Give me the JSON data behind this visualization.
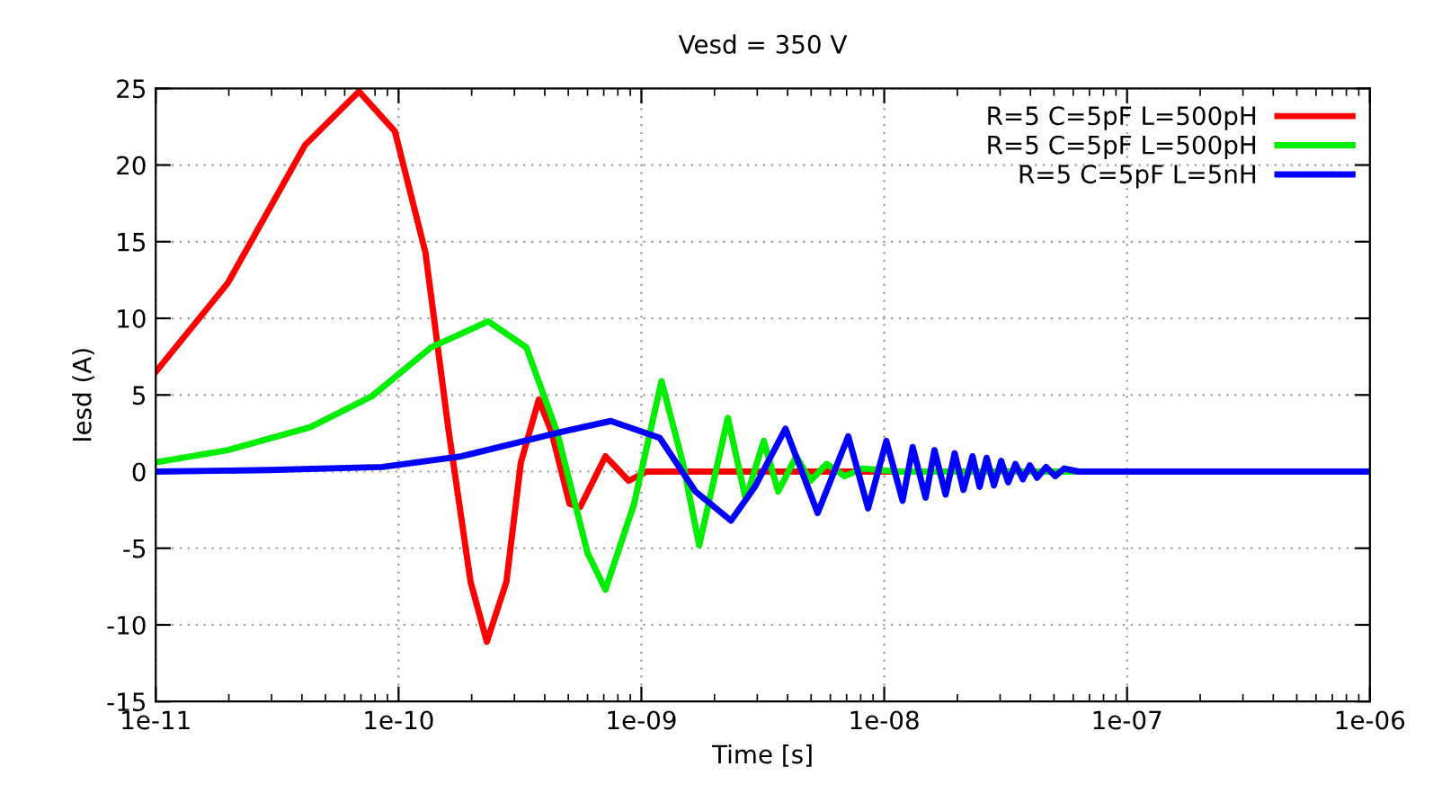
{
  "chart_data": {
    "type": "line",
    "title": "Vesd = 350 V",
    "xlabel": "Time [s]",
    "ylabel": "Iesd (A)",
    "log": "x",
    "xlim": [
      1e-11,
      1e-06
    ],
    "ylim": [
      -15,
      25
    ],
    "xticks": [
      {
        "value": 1e-11,
        "label": "1e-11"
      },
      {
        "value": 1e-10,
        "label": "1e-10"
      },
      {
        "value": 1e-09,
        "label": "1e-09"
      },
      {
        "value": 1e-08,
        "label": "1e-08"
      },
      {
        "value": 1e-07,
        "label": "1e-07"
      },
      {
        "value": 1e-06,
        "label": "1e-06"
      }
    ],
    "yticks": [
      -15,
      -10,
      -5,
      0,
      5,
      10,
      15,
      20,
      25
    ],
    "grid": true,
    "legend": "top right",
    "marker": "none",
    "line_style": "solid",
    "series": [
      {
        "name": "R=5 C=5pF L=500pH",
        "color": "#ff0000",
        "x": [
          1e-11,
          1.98e-11,
          4.12e-11,
          6.87e-11,
          9.66e-11,
          1.29e-10,
          1.61e-10,
          1.98e-10,
          2.31e-10,
          2.78e-10,
          3.19e-10,
          3.78e-10,
          4.26e-10,
          5.06e-10,
          5.6e-10,
          7.11e-10,
          8.87e-10,
          1.05e-09,
          1e-06
        ],
        "values": [
          6.5,
          12.3,
          21.3,
          24.8,
          22.2,
          14.3,
          2.6,
          -7.2,
          -11.1,
          -7.2,
          0.6,
          4.7,
          2.6,
          -2.1,
          -2.3,
          1.0,
          -0.6,
          0,
          0
        ]
      },
      {
        "name": "R=5 C=5pF L=500pH",
        "color": "#00ee00",
        "x": [
          1e-11,
          1.98e-11,
          4.33e-11,
          7.74e-11,
          1.36e-10,
          2.34e-10,
          3.36e-10,
          4.49e-10,
          6e-10,
          7.11e-10,
          9.33e-10,
          1.21e-09,
          1.48e-09,
          1.73e-09,
          2.27e-09,
          2.69e-09,
          3.19e-09,
          3.66e-09,
          4.34e-09,
          4.97e-09,
          5.79e-09,
          6.87e-09,
          8.15e-09,
          1.15e-08,
          1e-06
        ],
        "values": [
          0.6,
          1.4,
          2.9,
          4.9,
          8.1,
          9.8,
          8.1,
          2.6,
          -5.3,
          -7.7,
          -2.1,
          5.9,
          0.6,
          -4.8,
          3.5,
          -1.8,
          2.0,
          -1.3,
          1.0,
          -0.6,
          0.5,
          -0.3,
          0.2,
          0,
          0
        ]
      },
      {
        "name": "R=5 C=5pF L=5nH",
        "color": "#0000ff",
        "x": [
          1e-11,
          2.93e-11,
          8.58e-11,
          1.82e-10,
          4.72e-10,
          7.48e-10,
          1.19e-09,
          1.67e-09,
          2.34e-09,
          2.93e-09,
          3.92e-09,
          5.32e-09,
          7.11e-09,
          8.58e-09,
          1.02e-08,
          1.19e-08,
          1.31e-08,
          1.48e-08,
          1.61e-08,
          1.79e-08,
          1.95e-08,
          2.12e-08,
          2.31e-08,
          2.47e-08,
          2.64e-08,
          2.83e-08,
          3.03e-08,
          3.24e-08,
          3.47e-08,
          3.72e-08,
          3.98e-08,
          4.26e-08,
          4.64e-08,
          5.06e-08,
          5.51e-08,
          6.31e-08,
          1e-06
        ],
        "values": [
          0,
          0.1,
          0.3,
          1.0,
          2.6,
          3.3,
          2.2,
          -1.3,
          -3.2,
          -1.0,
          2.8,
          -2.7,
          2.3,
          -2.4,
          2.0,
          -1.9,
          1.6,
          -1.7,
          1.4,
          -1.5,
          1.2,
          -1.2,
          1.0,
          -1.0,
          0.9,
          -0.9,
          0.7,
          -0.7,
          0.5,
          -0.5,
          0.4,
          -0.4,
          0.3,
          -0.3,
          0.2,
          0,
          0
        ]
      }
    ]
  }
}
